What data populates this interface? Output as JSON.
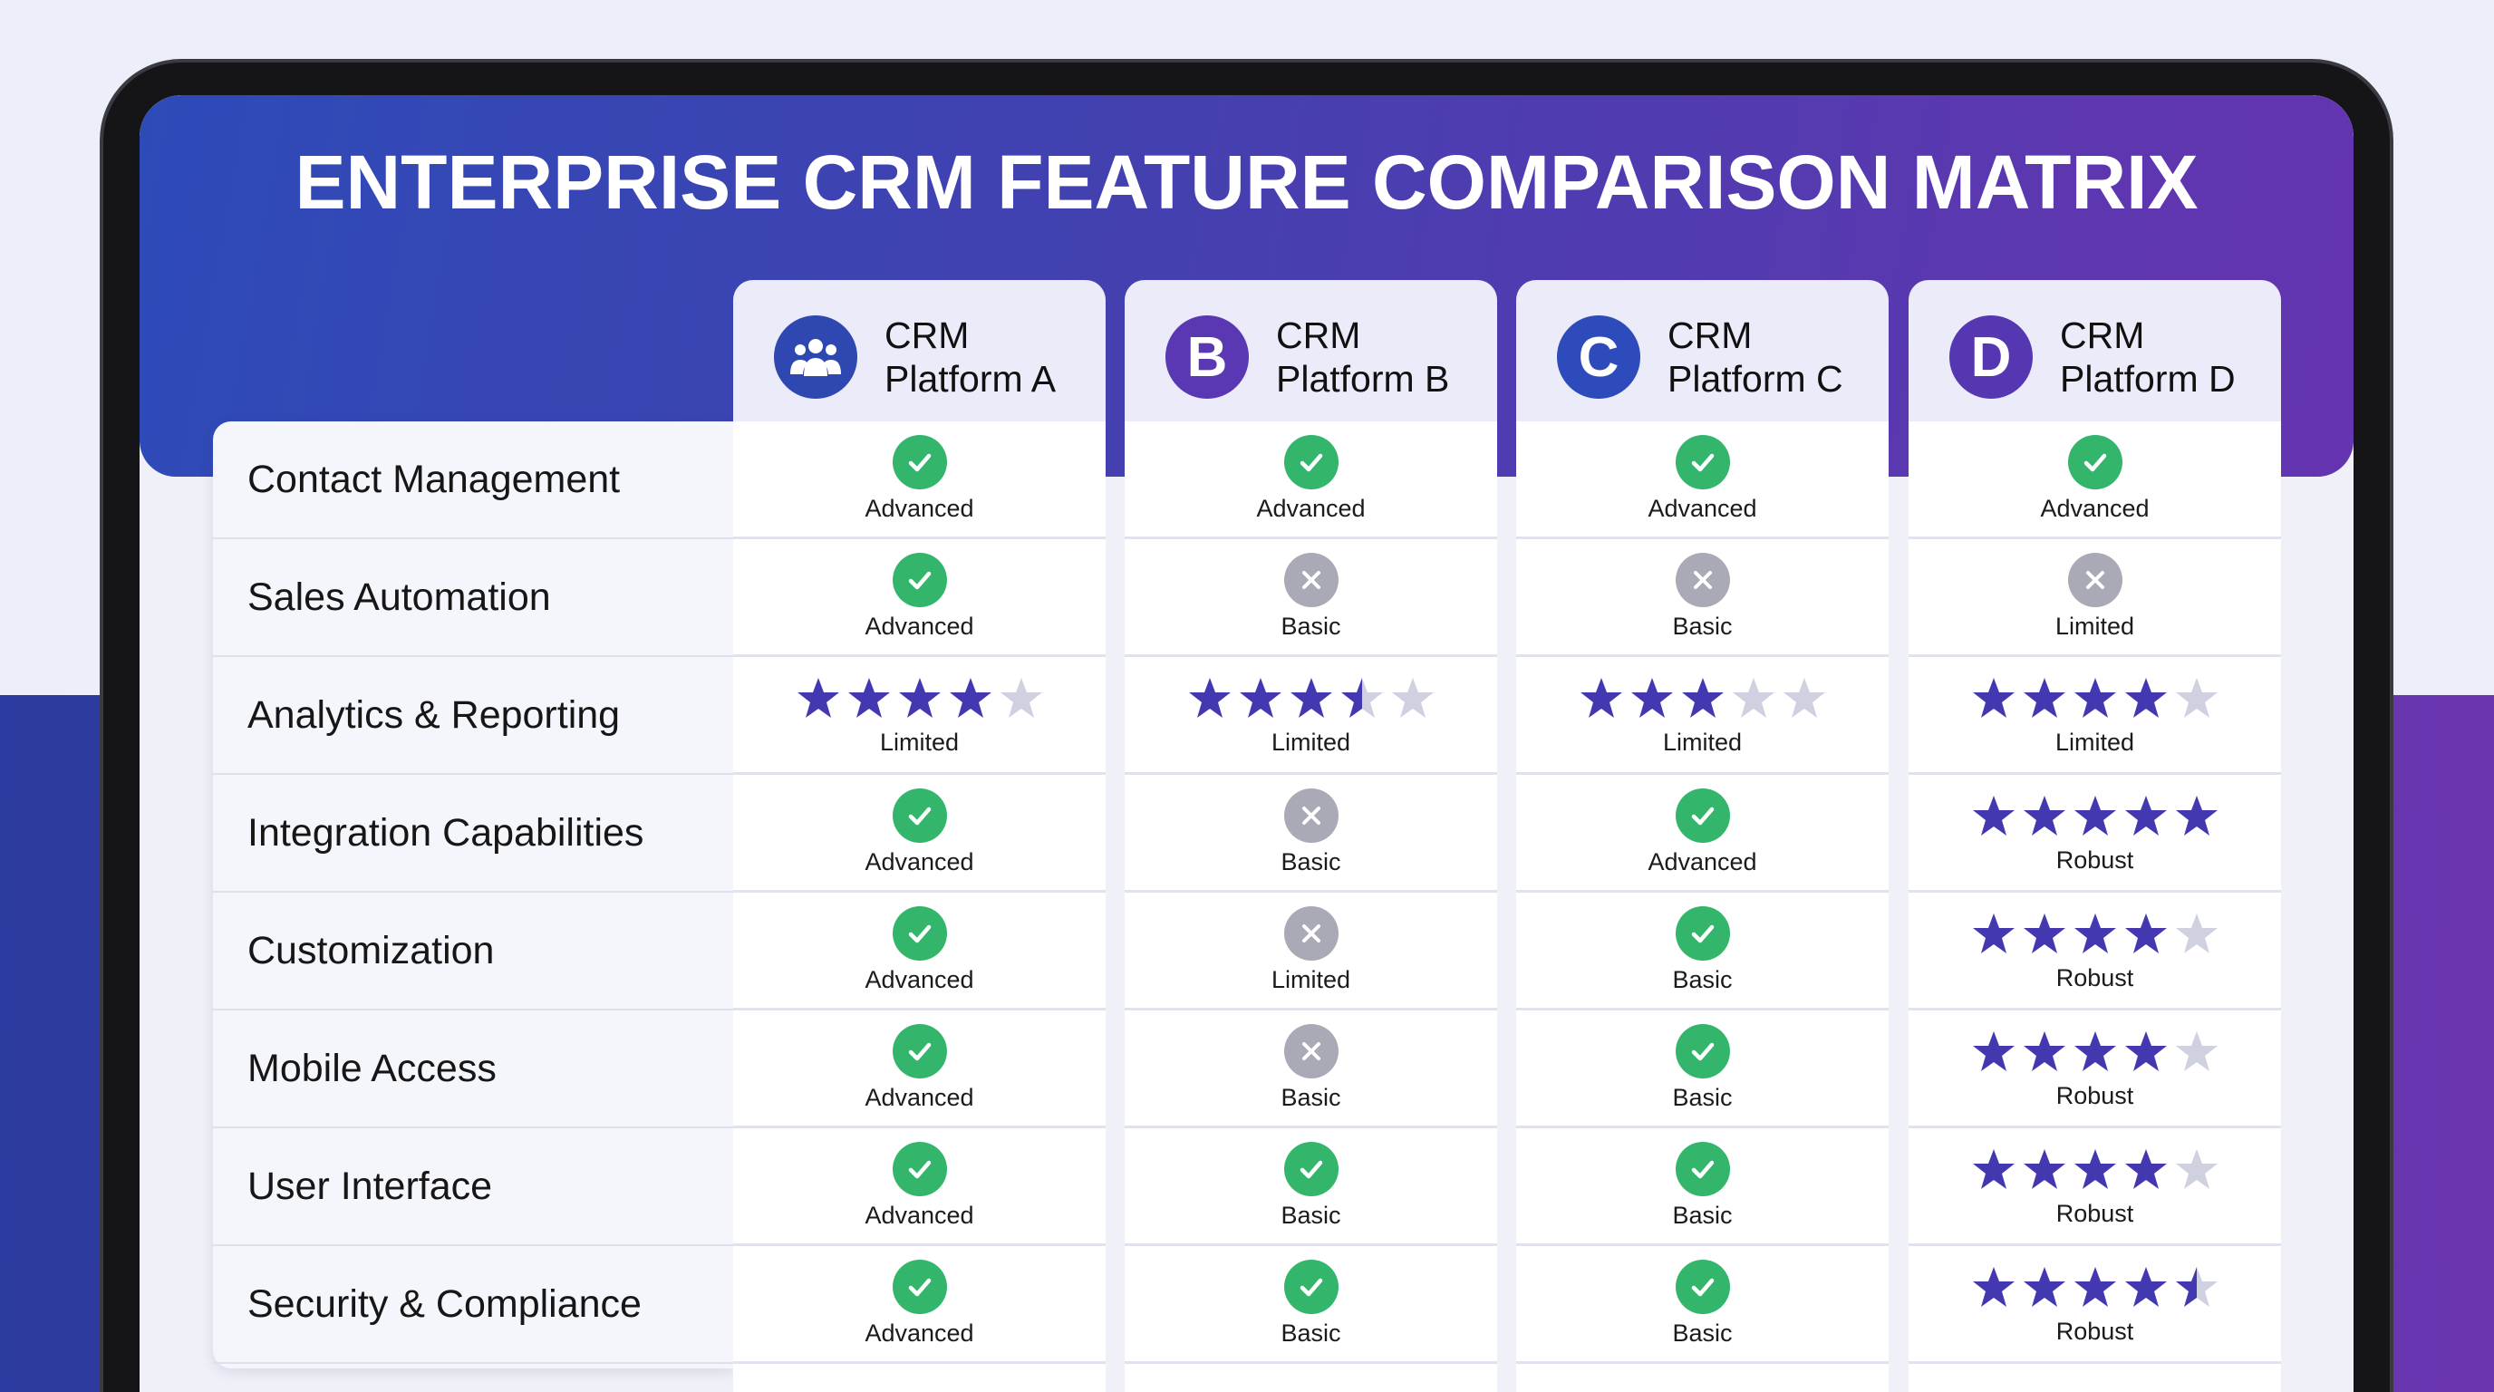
{
  "title": "ENTERPRISE CRM FEATURE COMPARISON MATRIX",
  "colors": {
    "check": "#33b56b",
    "x": "#a9aab6",
    "star_filled": "#4338b0",
    "star_empty": "#cfd0e0",
    "accent_blue": "#2d4bb8",
    "accent_purple": "#6534b0"
  },
  "platforms": [
    {
      "line1": "CRM",
      "line2": "Platform A",
      "icon": "users-icon",
      "logo_text": "",
      "logo_color": "#2f47b0"
    },
    {
      "line1": "CRM",
      "line2": "Platform B",
      "icon": "letter-b-icon",
      "logo_text": "B",
      "logo_color": "#5a38b4"
    },
    {
      "line1": "CRM",
      "line2": "Platform C",
      "icon": "letter-c-icon",
      "logo_text": "C",
      "logo_color": "#2d4bbb"
    },
    {
      "line1": "CRM",
      "line2": "Platform D",
      "icon": "letter-d-icon",
      "logo_text": "D",
      "logo_color": "#5537b2"
    }
  ],
  "features": [
    "Contact Management",
    "Sales Automation",
    "Analytics & Reporting",
    "Integration Capabilities",
    "Customization",
    "Mobile Access",
    "User Interface",
    "Security & Compliance"
  ],
  "matrix": [
    [
      {
        "type": "check",
        "label": "Advanced"
      },
      {
        "type": "check",
        "label": "Advanced"
      },
      {
        "type": "check",
        "label": "Advanced"
      },
      {
        "type": "check",
        "label": "Advanced"
      }
    ],
    [
      {
        "type": "check",
        "label": "Advanced"
      },
      {
        "type": "x",
        "label": "Basic"
      },
      {
        "type": "x",
        "label": "Basic"
      },
      {
        "type": "x",
        "label": "Limited"
      }
    ],
    [
      {
        "type": "stars",
        "rating": 4,
        "label": "Limited"
      },
      {
        "type": "stars",
        "rating": 3.5,
        "label": "Limited"
      },
      {
        "type": "stars",
        "rating": 3,
        "label": "Limited"
      },
      {
        "type": "stars",
        "rating": 4,
        "label": "Limited"
      }
    ],
    [
      {
        "type": "check",
        "label": "Advanced"
      },
      {
        "type": "x",
        "label": "Basic"
      },
      {
        "type": "check",
        "label": "Advanced"
      },
      {
        "type": "stars",
        "rating": 5,
        "label": "Robust"
      }
    ],
    [
      {
        "type": "check",
        "label": "Advanced"
      },
      {
        "type": "x",
        "label": "Limited"
      },
      {
        "type": "check",
        "label": "Basic"
      },
      {
        "type": "stars",
        "rating": 4,
        "label": "Robust"
      }
    ],
    [
      {
        "type": "check",
        "label": "Advanced"
      },
      {
        "type": "x",
        "label": "Basic"
      },
      {
        "type": "check",
        "label": "Basic"
      },
      {
        "type": "stars",
        "rating": 4,
        "label": "Robust"
      }
    ],
    [
      {
        "type": "check",
        "label": "Advanced"
      },
      {
        "type": "check",
        "label": "Basic"
      },
      {
        "type": "check",
        "label": "Basic"
      },
      {
        "type": "stars",
        "rating": 4,
        "label": "Robust"
      }
    ],
    [
      {
        "type": "check",
        "label": "Advanced"
      },
      {
        "type": "check",
        "label": "Basic"
      },
      {
        "type": "check",
        "label": "Basic"
      },
      {
        "type": "stars",
        "rating": 4.5,
        "label": "Robust"
      }
    ]
  ]
}
